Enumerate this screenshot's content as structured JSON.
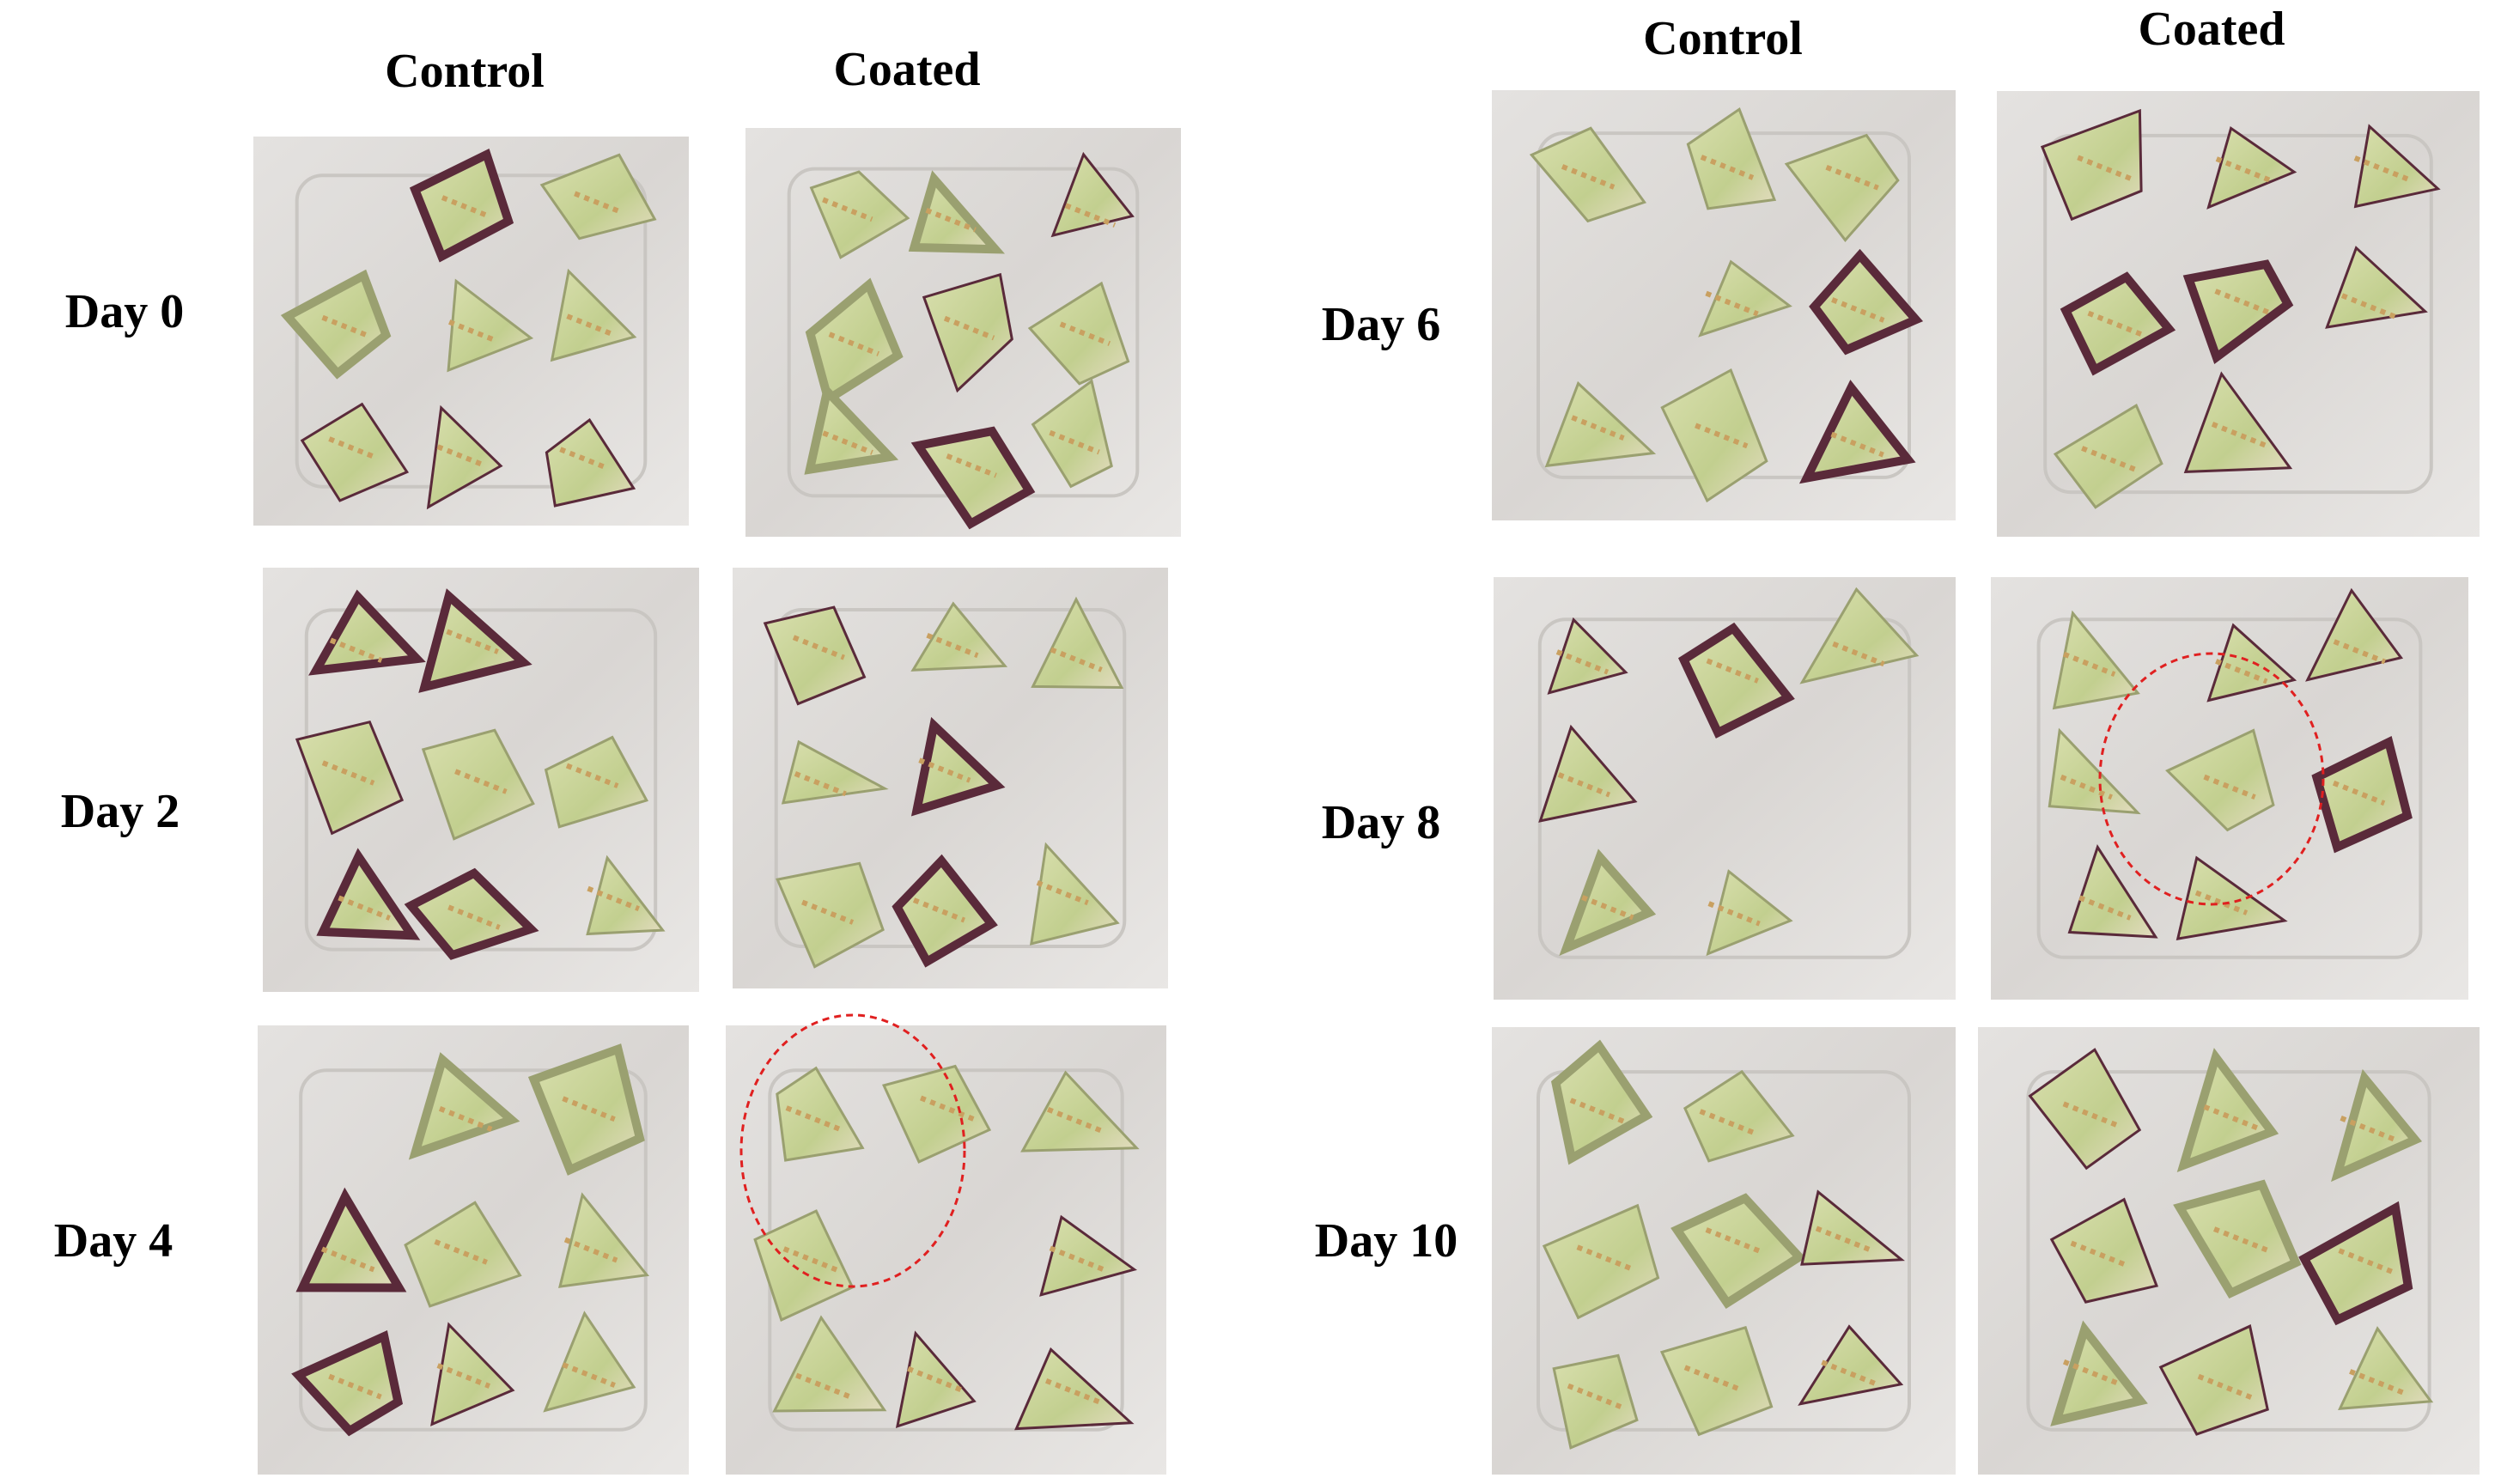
{
  "left_panel": {
    "columns": [
      "Control",
      "Coated"
    ],
    "rows": [
      "Day 0",
      "Day 2",
      "Day 4"
    ]
  },
  "right_panel": {
    "columns": [
      "Control",
      "Coated"
    ],
    "rows": [
      "Day 6",
      "Day 8",
      "Day 10"
    ]
  }
}
